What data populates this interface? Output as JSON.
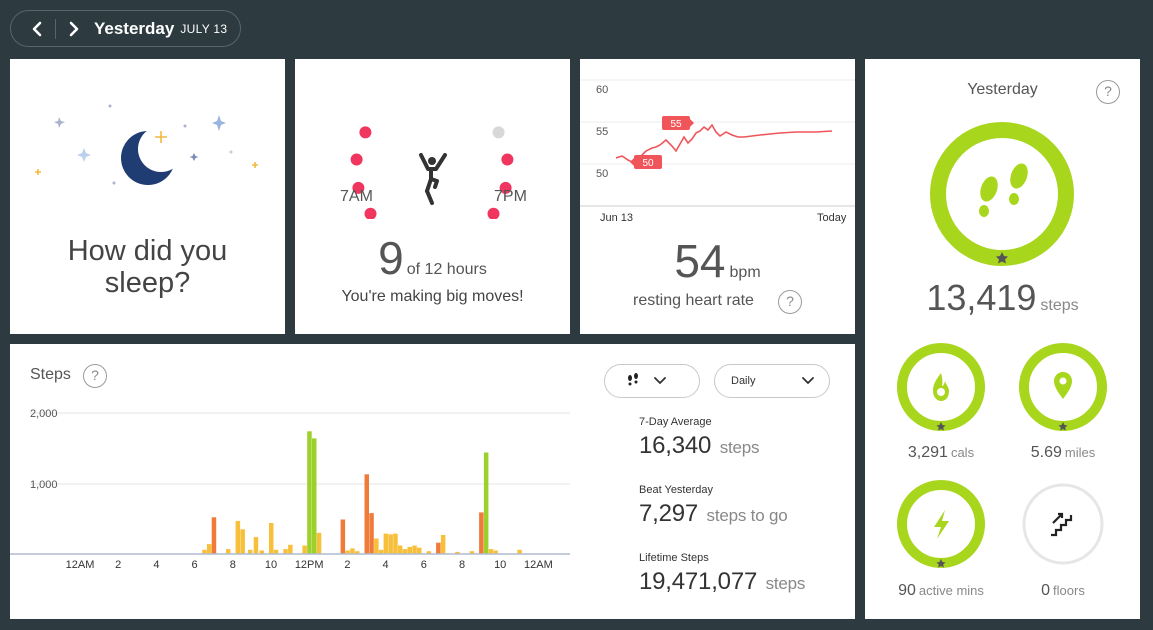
{
  "nav": {
    "title": "Yesterday",
    "date": "JULY 13"
  },
  "sleep": {
    "question": "How did you sleep?"
  },
  "hourly": {
    "start_label": "7AM",
    "end_label": "7PM",
    "hours_met": "9",
    "of_text": "of 12 hours",
    "message": "You're making big moves!",
    "dots_met": [
      true,
      true,
      true,
      true,
      false,
      true,
      true,
      false,
      true,
      true,
      true,
      false
    ],
    "met_color": "#f0365f",
    "missed_color": "#d8d8d8"
  },
  "heart": {
    "y_ticks": [
      "60",
      "55",
      "50"
    ],
    "x_start": "Jun 13",
    "x_end": "Today",
    "marker_high": "55",
    "marker_low": "50",
    "value": "54",
    "unit": "bpm",
    "label": "resting heart rate",
    "help": "?",
    "line_color": "#f0555a"
  },
  "steps_chart": {
    "title": "Steps",
    "help": "?",
    "dropdown_icon": "footprints-icon",
    "period": "Daily",
    "stats": [
      {
        "label": "7-Day Average",
        "value": "16,340",
        "unit": "steps"
      },
      {
        "label": "Beat Yesterday",
        "value": "7,297",
        "unit": "steps to go"
      },
      {
        "label": "Lifetime Steps",
        "value": "19,471,077",
        "unit": "steps"
      }
    ]
  },
  "chart_data": {
    "type": "bar",
    "ylim": [
      0,
      2000
    ],
    "y_ticks": [
      "2,000",
      "1,000"
    ],
    "x_ticks": [
      "12AM",
      "2",
      "4",
      "6",
      "8",
      "10",
      "12PM",
      "2",
      "4",
      "6",
      "8",
      "10",
      "12AM"
    ],
    "colors": {
      "low": "#f8c03a",
      "mid": "#f07a3a",
      "high": "#9cd02a"
    },
    "bars": [
      {
        "hour": 6.5,
        "value": 60,
        "level": "low"
      },
      {
        "hour": 6.75,
        "value": 140,
        "level": "low"
      },
      {
        "hour": 7.0,
        "value": 520,
        "level": "mid"
      },
      {
        "hour": 7.75,
        "value": 70,
        "level": "low"
      },
      {
        "hour": 8.25,
        "value": 470,
        "level": "low"
      },
      {
        "hour": 8.5,
        "value": 350,
        "level": "low"
      },
      {
        "hour": 8.9,
        "value": 60,
        "level": "low"
      },
      {
        "hour": 9.2,
        "value": 240,
        "level": "low"
      },
      {
        "hour": 9.5,
        "value": 50,
        "level": "low"
      },
      {
        "hour": 10.0,
        "value": 440,
        "level": "low"
      },
      {
        "hour": 10.25,
        "value": 60,
        "level": "low"
      },
      {
        "hour": 10.75,
        "value": 70,
        "level": "low"
      },
      {
        "hour": 11.0,
        "value": 130,
        "level": "low"
      },
      {
        "hour": 11.75,
        "value": 120,
        "level": "low"
      },
      {
        "hour": 12.0,
        "value": 1740,
        "level": "high"
      },
      {
        "hour": 12.25,
        "value": 1640,
        "level": "high"
      },
      {
        "hour": 12.5,
        "value": 300,
        "level": "low"
      },
      {
        "hour": 13.75,
        "value": 490,
        "level": "mid"
      },
      {
        "hour": 14.0,
        "value": 50,
        "level": "low"
      },
      {
        "hour": 14.25,
        "value": 80,
        "level": "low"
      },
      {
        "hour": 14.5,
        "value": 40,
        "level": "low"
      },
      {
        "hour": 15.0,
        "value": 1130,
        "level": "mid"
      },
      {
        "hour": 15.25,
        "value": 580,
        "level": "mid"
      },
      {
        "hour": 15.5,
        "value": 220,
        "level": "low"
      },
      {
        "hour": 15.75,
        "value": 60,
        "level": "low"
      },
      {
        "hour": 16.0,
        "value": 290,
        "level": "low"
      },
      {
        "hour": 16.25,
        "value": 280,
        "level": "low"
      },
      {
        "hour": 16.5,
        "value": 290,
        "level": "low"
      },
      {
        "hour": 16.75,
        "value": 120,
        "level": "low"
      },
      {
        "hour": 17.0,
        "value": 70,
        "level": "low"
      },
      {
        "hour": 17.25,
        "value": 100,
        "level": "low"
      },
      {
        "hour": 17.5,
        "value": 120,
        "level": "low"
      },
      {
        "hour": 17.75,
        "value": 90,
        "level": "low"
      },
      {
        "hour": 18.25,
        "value": 40,
        "level": "low"
      },
      {
        "hour": 18.75,
        "value": 160,
        "level": "mid"
      },
      {
        "hour": 19.0,
        "value": 270,
        "level": "low"
      },
      {
        "hour": 19.75,
        "value": 30,
        "level": "low"
      },
      {
        "hour": 20.5,
        "value": 40,
        "level": "low"
      },
      {
        "hour": 21.0,
        "value": 590,
        "level": "mid"
      },
      {
        "hour": 21.25,
        "value": 1440,
        "level": "high"
      },
      {
        "hour": 21.5,
        "value": 70,
        "level": "low"
      },
      {
        "hour": 21.75,
        "value": 50,
        "level": "low"
      },
      {
        "hour": 23.0,
        "value": 60,
        "level": "low"
      }
    ]
  },
  "summary": {
    "title": "Yesterday",
    "help": "?",
    "steps_value": "13,419",
    "steps_unit": "steps",
    "ring_color": "#a8d61c",
    "empty_ring_color": "#e6e6e6",
    "metrics": [
      {
        "icon": "flame-icon",
        "value": "3,291",
        "unit": "cals",
        "goal_met": true
      },
      {
        "icon": "location-pin-icon",
        "value": "5.69",
        "unit": "miles",
        "goal_met": true
      },
      {
        "icon": "lightning-bolt-icon",
        "value": "90",
        "unit": "active mins",
        "goal_met": true
      },
      {
        "icon": "stairs-icon",
        "value": "0",
        "unit": "floors",
        "goal_met": false
      }
    ]
  }
}
